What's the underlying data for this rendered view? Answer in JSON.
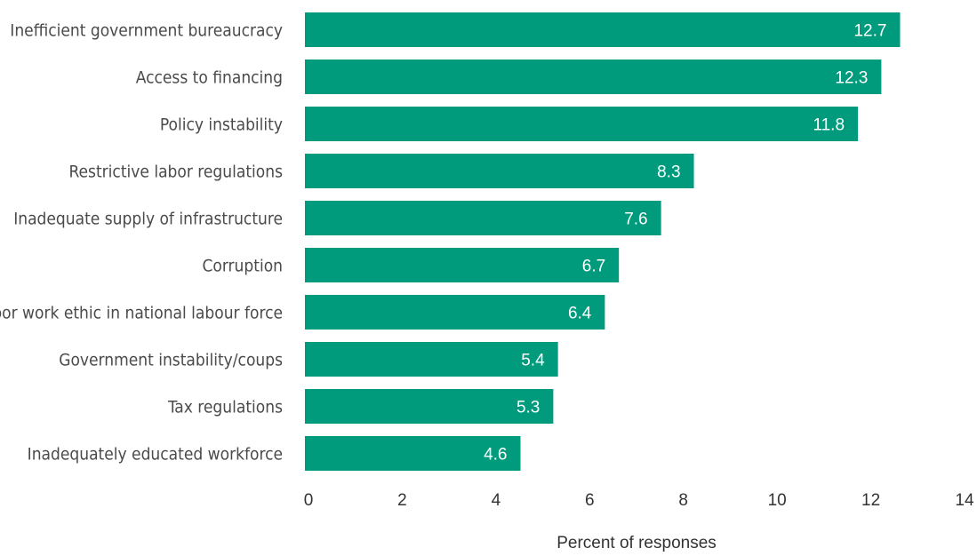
{
  "chart_data": {
    "type": "bar",
    "orientation": "horizontal",
    "categories": [
      "Inefficient government bureaucracy",
      "Access to financing",
      "Policy instability",
      "Restrictive labor regulations",
      "Inadequate supply of infrastructure",
      "Corruption",
      "Poor work ethic in national labour force",
      "Government instability/coups",
      "Tax regulations",
      "Inadequately educated workforce"
    ],
    "values": [
      12.7,
      12.3,
      11.8,
      8.3,
      7.6,
      6.7,
      6.4,
      5.4,
      5.3,
      4.6
    ],
    "value_labels": [
      "12.7",
      "12.3",
      "11.8",
      "8.3",
      "7.6",
      "6.7",
      "6.4",
      "5.4",
      "5.3",
      "4.6"
    ],
    "xlabel": "Percent of responses",
    "xlim": [
      0,
      14
    ],
    "xticks": [
      0,
      2,
      4,
      6,
      8,
      10,
      12,
      14
    ],
    "xtick_labels": [
      "0",
      "2",
      "4",
      "6",
      "8",
      "10",
      "12",
      "14"
    ],
    "bar_color": "#009B7D",
    "grid": false,
    "legend": "none"
  }
}
